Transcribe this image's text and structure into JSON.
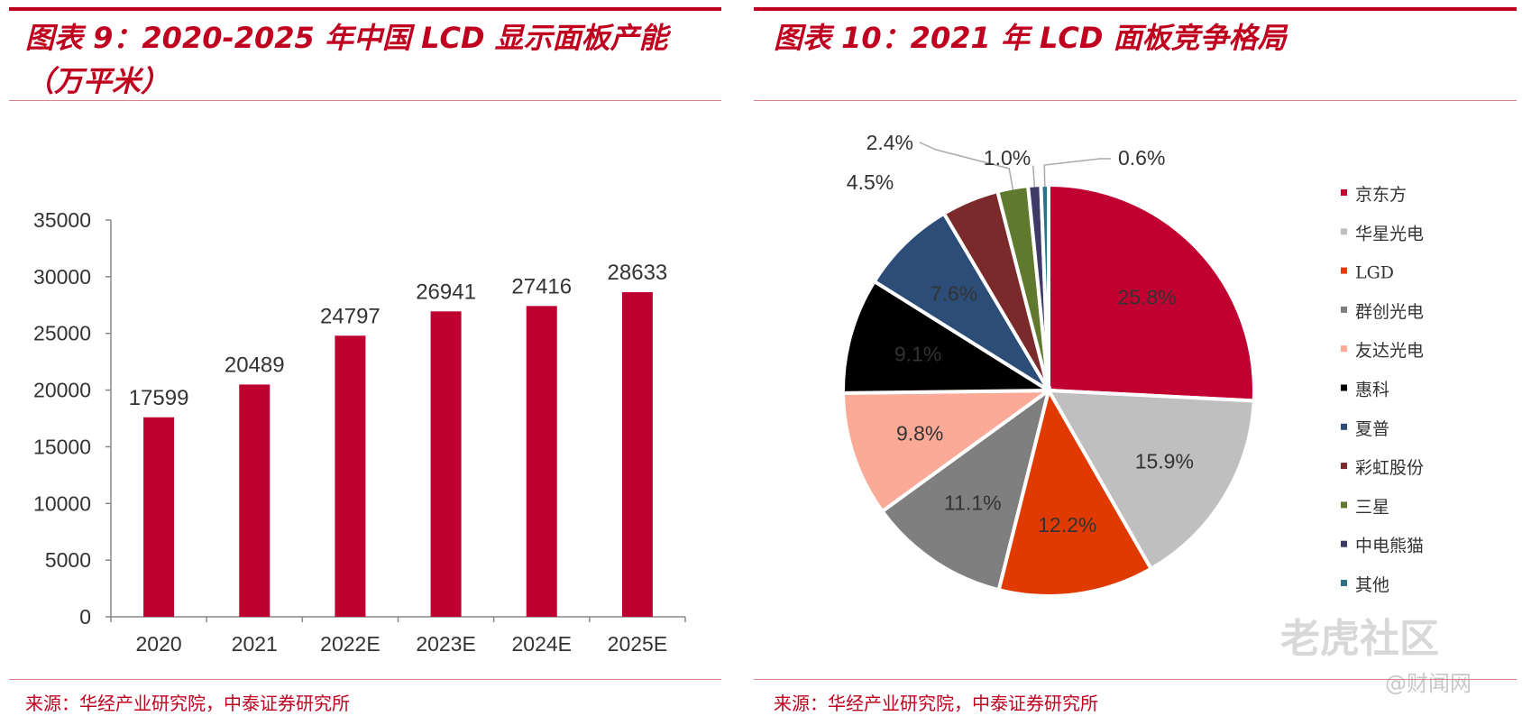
{
  "left": {
    "title": "图表 9：2020-2025 年中国 LCD 显示面板产能（万平米）",
    "source": "来源：华经产业研究院，中泰证券研究所"
  },
  "right": {
    "title": "图表 10：2021 年 LCD 面板竞争格局",
    "source": "来源：华经产业研究院，中泰证券研究所"
  },
  "watermark": {
    "text": "老虎社区",
    "sub": "@财闻网"
  },
  "chart_data": [
    {
      "type": "bar",
      "title": "2020-2025 年中国 LCD 显示面板产能（万平米）",
      "categories": [
        "2020",
        "2021",
        "2022E",
        "2023E",
        "2024E",
        "2025E"
      ],
      "values": [
        17599,
        20489,
        24797,
        26941,
        27416,
        28633
      ],
      "ylim": [
        0,
        35000
      ],
      "yticks": [
        0,
        5000,
        10000,
        15000,
        20000,
        25000,
        30000,
        35000
      ],
      "xlabel": "",
      "ylabel": "",
      "color": "#bd0030"
    },
    {
      "type": "pie",
      "title": "2021 年 LCD 面板竞争格局",
      "labels": [
        "京东方",
        "华星光电",
        "LGD",
        "群创光电",
        "友达光电",
        "惠科",
        "夏普",
        "彩虹股份",
        "三星",
        "中电熊猫",
        "其他"
      ],
      "values": [
        25.8,
        15.9,
        12.2,
        11.1,
        9.8,
        9.1,
        7.6,
        4.5,
        2.4,
        1.0,
        0.6
      ],
      "value_labels": [
        "25.8%",
        "15.9%",
        "12.2%",
        "11.1%",
        "9.8%",
        "9.1%",
        "7.6%",
        "4.5%",
        "2.4%",
        "1.0%",
        "0.6%"
      ],
      "colors": [
        "#c00031",
        "#bfbfbf",
        "#e03a00",
        "#7f7f7f",
        "#fbaa98",
        "#000000",
        "#2c4d78",
        "#7a2a2a",
        "#5f7a2e",
        "#3e3a66",
        "#2e6f8a"
      ],
      "legend": "right"
    }
  ]
}
